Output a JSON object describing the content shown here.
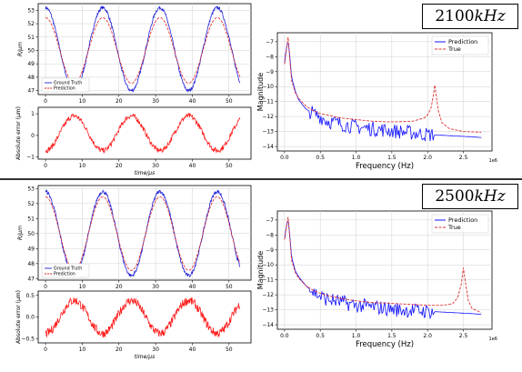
{
  "sep": {},
  "panels": [
    {
      "freq_number": "2100",
      "freq_unit": "kHz",
      "time_top": {
        "ylabel": "R/μm",
        "xticks": [
          "0",
          "10",
          "20",
          "30",
          "40",
          "50"
        ],
        "yticks": [
          "47",
          "48",
          "49",
          "50",
          "51",
          "52",
          "53"
        ],
        "legend": [
          "Ground Truth",
          "Prediction"
        ]
      },
      "time_err": {
        "ylabel": "Absolute error (μm)",
        "xlabel": "time/μs",
        "xticks": [
          "0",
          "10",
          "20",
          "30",
          "40",
          "50"
        ],
        "yticks": [
          "−1",
          "0",
          "1"
        ]
      },
      "fft": {
        "ylabel": "Magnitude",
        "xlabel": "Frequency (Hz)",
        "offset": "1e6",
        "xticks": [
          "0.0",
          "0.5",
          "1.0",
          "1.5",
          "2.0",
          "2.5"
        ],
        "yticks": [
          "−7",
          "−8",
          "−9",
          "−10",
          "−11",
          "−12",
          "−13",
          "−14"
        ],
        "legend": [
          "Prediction",
          "True"
        ]
      }
    },
    {
      "freq_number": "2500",
      "freq_unit": "kHz",
      "time_top": {
        "ylabel": "R/μm",
        "xticks": [
          "0",
          "10",
          "20",
          "30",
          "40",
          "50"
        ],
        "yticks": [
          "47",
          "48",
          "49",
          "50",
          "51",
          "52",
          "53"
        ],
        "legend": [
          "Ground Truth",
          "Prediction"
        ]
      },
      "time_err": {
        "ylabel": "Absolute error (μm)",
        "xlabel": "time/μs",
        "xticks": [
          "0",
          "10",
          "20",
          "30",
          "40",
          "50"
        ],
        "yticks": [
          "−0.5",
          "0.0",
          "0.5"
        ]
      },
      "fft": {
        "ylabel": "Magnitude",
        "xlabel": "Frequency (Hz)",
        "offset": "1e6",
        "xticks": [
          "0.0",
          "0.5",
          "1.0",
          "1.5",
          "2.0",
          "2.5"
        ],
        "yticks": [
          "−7",
          "−8",
          "−9",
          "−10",
          "−11",
          "−12",
          "−13",
          "−14"
        ],
        "legend": [
          "Prediction",
          "True"
        ]
      }
    }
  ],
  "chart_data": [
    {
      "type": "line",
      "panel": "2100kHz time-domain",
      "xlim": [
        -2,
        56
      ],
      "ylim": [
        46.7,
        53.5
      ],
      "series": [
        {
          "name": "Ground Truth",
          "color": "#1f1fd6",
          "model": "sine",
          "mean": 50.1,
          "amplitude": 3.1,
          "period_us": 15.6,
          "phase_deg": 0
        },
        {
          "name": "Prediction",
          "color": "#e32020",
          "model": "sine",
          "mean": 50.0,
          "amplitude": 2.45,
          "period_us": 15.6,
          "phase_deg": 0
        }
      ]
    },
    {
      "type": "line",
      "panel": "2100kHz absolute error",
      "xlim": [
        -2,
        56
      ],
      "ylim": [
        -1.1,
        1.3
      ],
      "series": [
        {
          "name": "error",
          "color": "#ff1a1a",
          "model": "sine+noise",
          "mean": 0.1,
          "amplitude": 0.8,
          "period_us": 15.6,
          "noise": 0.12
        }
      ]
    },
    {
      "type": "line",
      "panel": "2100kHz spectrum",
      "xlim": [
        -0.1,
        2.9
      ],
      "ylim": [
        -14.3,
        -6.4
      ],
      "series": [
        {
          "name": "Prediction",
          "color": "#1010ff",
          "style": "solid",
          "x": [
            0.0,
            0.02,
            0.05,
            0.07,
            0.1,
            0.15,
            0.2,
            0.3,
            0.4,
            0.5,
            0.6,
            0.8,
            1.0,
            1.2,
            1.4,
            1.6,
            1.8,
            2.0,
            2.2,
            2.4,
            2.6,
            2.75
          ],
          "y": [
            -8.4,
            -7.6,
            -6.9,
            -7.8,
            -9.4,
            -10.3,
            -10.9,
            -11.5,
            -11.8,
            -12.0,
            -12.3,
            -12.5,
            -12.7,
            -12.8,
            -12.9,
            -13.0,
            -13.1,
            -13.2,
            -13.25,
            -13.3,
            -13.35,
            -13.4
          ]
        },
        {
          "name": "True",
          "color": "#e03030",
          "style": "dashed",
          "x": [
            0.0,
            0.02,
            0.05,
            0.07,
            0.1,
            0.15,
            0.2,
            0.3,
            0.4,
            0.5,
            0.6,
            0.8,
            1.0,
            1.2,
            1.4,
            1.6,
            1.8,
            1.95,
            2.0,
            2.05,
            2.08,
            2.1,
            2.12,
            2.15,
            2.2,
            2.3,
            2.5,
            2.75
          ],
          "y": [
            -8.5,
            -7.8,
            -6.7,
            -8.0,
            -9.6,
            -10.4,
            -10.8,
            -11.3,
            -11.6,
            -11.8,
            -11.9,
            -12.1,
            -12.2,
            -12.3,
            -12.35,
            -12.35,
            -12.3,
            -12.1,
            -11.9,
            -11.4,
            -10.6,
            -9.9,
            -10.6,
            -11.6,
            -12.4,
            -12.8,
            -13.0,
            -13.05
          ]
        }
      ]
    },
    {
      "type": "line",
      "panel": "2500kHz time-domain",
      "xlim": [
        -2,
        56
      ],
      "ylim": [
        46.9,
        53.2
      ],
      "series": [
        {
          "name": "Ground Truth",
          "color": "#1f1fd6",
          "model": "sine",
          "mean": 50.0,
          "amplitude": 2.8,
          "period_us": 15.6,
          "phase_deg": 0
        },
        {
          "name": "Prediction",
          "color": "#e32020",
          "model": "sine",
          "mean": 50.0,
          "amplitude": 2.45,
          "period_us": 15.6,
          "phase_deg": 0
        }
      ]
    },
    {
      "type": "line",
      "panel": "2500kHz absolute error",
      "xlim": [
        -2,
        56
      ],
      "ylim": [
        -0.6,
        0.6
      ],
      "series": [
        {
          "name": "error",
          "color": "#ff1a1a",
          "model": "sine+noise",
          "mean": 0.0,
          "amplitude": 0.38,
          "period_us": 15.6,
          "noise": 0.1
        }
      ]
    },
    {
      "type": "line",
      "panel": "2500kHz spectrum",
      "xlim": [
        -0.1,
        2.9
      ],
      "ylim": [
        -14.3,
        -6.4
      ],
      "series": [
        {
          "name": "Prediction",
          "color": "#1010ff",
          "style": "solid",
          "x": [
            0.0,
            0.02,
            0.05,
            0.07,
            0.1,
            0.15,
            0.2,
            0.3,
            0.4,
            0.5,
            0.6,
            0.8,
            1.0,
            1.2,
            1.4,
            1.6,
            1.8,
            2.0,
            2.2,
            2.4,
            2.6,
            2.75
          ],
          "y": [
            -8.3,
            -7.6,
            -6.9,
            -7.9,
            -9.5,
            -10.4,
            -10.8,
            -11.4,
            -11.8,
            -12.1,
            -12.3,
            -12.5,
            -12.7,
            -12.8,
            -12.9,
            -13.0,
            -13.05,
            -13.1,
            -13.15,
            -13.2,
            -13.25,
            -13.3
          ]
        },
        {
          "name": "True",
          "color": "#e03030",
          "style": "dashed",
          "x": [
            0.0,
            0.02,
            0.05,
            0.07,
            0.1,
            0.15,
            0.2,
            0.3,
            0.4,
            0.5,
            0.6,
            0.8,
            1.0,
            1.2,
            1.4,
            1.6,
            1.8,
            2.0,
            2.2,
            2.35,
            2.42,
            2.47,
            2.5,
            2.53,
            2.57,
            2.62,
            2.75
          ],
          "y": [
            -8.3,
            -7.7,
            -6.8,
            -8.0,
            -9.7,
            -10.5,
            -10.9,
            -11.4,
            -11.7,
            -11.9,
            -12.05,
            -12.25,
            -12.4,
            -12.5,
            -12.55,
            -12.6,
            -12.65,
            -12.7,
            -12.7,
            -12.6,
            -12.2,
            -11.3,
            -10.2,
            -11.2,
            -12.4,
            -12.9,
            -13.2
          ]
        }
      ]
    }
  ]
}
